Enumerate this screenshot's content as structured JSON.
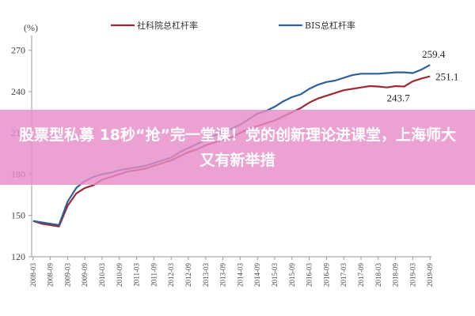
{
  "chart_data": {
    "type": "line",
    "unit_label": "(%)",
    "ylim": [
      120,
      275
    ],
    "yticks": [
      120,
      150,
      180,
      210,
      240,
      270
    ],
    "grid": false,
    "legend_position": "top",
    "x": [
      "2008-03",
      "2008-09",
      "2009-03",
      "2009-09",
      "2010-03",
      "2010-09",
      "2011-03",
      "2011-09",
      "2012-03",
      "2012-09",
      "2013-03",
      "2013-09",
      "2014-03",
      "2014-09",
      "2015-03",
      "2015-09",
      "2016-03",
      "2016-09",
      "2017-03",
      "2017-09",
      "2018-03",
      "2018-09",
      "2019-03",
      "2019-09"
    ],
    "series": [
      {
        "name": "社科院总杠杆率",
        "color": "#9c2a36",
        "points": [
          [
            "2008-03",
            146
          ],
          [
            "2008-06",
            144
          ],
          [
            "2008-09",
            143
          ],
          [
            "2008-12",
            142
          ],
          [
            "2009-03",
            157
          ],
          [
            "2009-06",
            166
          ],
          [
            "2009-09",
            170
          ],
          [
            "2009-12",
            172
          ],
          [
            "2010-03",
            176
          ],
          [
            "2010-06",
            178
          ],
          [
            "2010-09",
            180
          ],
          [
            "2010-12",
            182
          ],
          [
            "2011-03",
            183
          ],
          [
            "2011-06",
            184
          ],
          [
            "2011-09",
            186
          ],
          [
            "2011-12",
            188
          ],
          [
            "2012-03",
            190
          ],
          [
            "2012-06",
            193
          ],
          [
            "2012-09",
            196
          ],
          [
            "2012-12",
            198
          ],
          [
            "2013-03",
            201
          ],
          [
            "2013-06",
            203
          ],
          [
            "2013-09",
            205
          ],
          [
            "2013-12",
            207
          ],
          [
            "2014-03",
            210
          ],
          [
            "2014-06",
            213
          ],
          [
            "2014-09",
            215
          ],
          [
            "2014-12",
            217
          ],
          [
            "2015-03",
            219
          ],
          [
            "2015-06",
            222
          ],
          [
            "2015-09",
            225
          ],
          [
            "2015-12",
            228
          ],
          [
            "2016-03",
            232
          ],
          [
            "2016-06",
            235
          ],
          [
            "2016-09",
            237
          ],
          [
            "2016-12",
            239
          ],
          [
            "2017-03",
            241
          ],
          [
            "2017-06",
            242
          ],
          [
            "2017-09",
            243
          ],
          [
            "2017-12",
            244
          ],
          [
            "2018-03",
            243.7
          ],
          [
            "2018-06",
            243
          ],
          [
            "2018-09",
            244
          ],
          [
            "2018-12",
            243.7
          ],
          [
            "2019-03",
            247.5
          ],
          [
            "2019-06",
            249.5
          ],
          [
            "2019-09",
            251.1
          ]
        ]
      },
      {
        "name": "BIS总杠杆率",
        "color": "#2e5f96",
        "points": [
          [
            "2008-03",
            146
          ],
          [
            "2008-06",
            145
          ],
          [
            "2008-09",
            144
          ],
          [
            "2008-12",
            143
          ],
          [
            "2009-03",
            160
          ],
          [
            "2009-06",
            170
          ],
          [
            "2009-09",
            175
          ],
          [
            "2009-12",
            178
          ],
          [
            "2010-03",
            180
          ],
          [
            "2010-06",
            181
          ],
          [
            "2010-09",
            183
          ],
          [
            "2010-12",
            184
          ],
          [
            "2011-03",
            185
          ],
          [
            "2011-06",
            186
          ],
          [
            "2011-09",
            188
          ],
          [
            "2011-12",
            190
          ],
          [
            "2012-03",
            192
          ],
          [
            "2012-06",
            196
          ],
          [
            "2012-09",
            199
          ],
          [
            "2012-12",
            202
          ],
          [
            "2013-03",
            205
          ],
          [
            "2013-06",
            208
          ],
          [
            "2013-09",
            211
          ],
          [
            "2013-12",
            213
          ],
          [
            "2014-03",
            216
          ],
          [
            "2014-06",
            220
          ],
          [
            "2014-09",
            224
          ],
          [
            "2014-12",
            226
          ],
          [
            "2015-03",
            229
          ],
          [
            "2015-06",
            233
          ],
          [
            "2015-09",
            236
          ],
          [
            "2015-12",
            238
          ],
          [
            "2016-03",
            242
          ],
          [
            "2016-06",
            245
          ],
          [
            "2016-09",
            247
          ],
          [
            "2016-12",
            248
          ],
          [
            "2017-03",
            250
          ],
          [
            "2017-06",
            252
          ],
          [
            "2017-09",
            253
          ],
          [
            "2017-12",
            253
          ],
          [
            "2018-03",
            253
          ],
          [
            "2018-06",
            253.5
          ],
          [
            "2018-09",
            254
          ],
          [
            "2018-12",
            254
          ],
          [
            "2019-03",
            253.5
          ],
          [
            "2019-06",
            256
          ],
          [
            "2019-09",
            259.4
          ]
        ]
      }
    ],
    "annotations": [
      {
        "text": "259.4",
        "series": 1,
        "x": "2019-09",
        "y": 259.4,
        "placement": "above"
      },
      {
        "text": "251.1",
        "series": 0,
        "x": "2019-09",
        "y": 251.1,
        "placement": "right"
      },
      {
        "text": "243.7",
        "series": 0,
        "x": "2018-12",
        "y": 243.7,
        "placement": "below"
      }
    ]
  },
  "banner": {
    "text": "股票型私募 18秒“抢”完一堂课！党的创新理论进课堂，上海师大又有新举措"
  }
}
